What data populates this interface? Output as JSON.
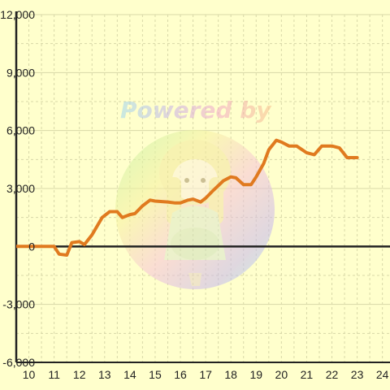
{
  "colors": {
    "background": "#ffffcc",
    "grid": "#d8d8a8",
    "axis": "#222222",
    "series": "#e07a1f"
  },
  "watermark": {
    "text": "Powered by",
    "description_icon": "anime-mascot-logo-icon"
  },
  "chart_data": {
    "type": "line",
    "title": "",
    "xlabel": "",
    "ylabel": "",
    "xlim": [
      9.5,
      24.3
    ],
    "ylim": [
      -6000,
      12000
    ],
    "x_ticks": [
      10,
      11,
      12,
      13,
      14,
      15,
      16,
      17,
      18,
      19,
      20,
      21,
      22,
      23,
      24
    ],
    "y_ticks": [
      -6000,
      -3000,
      0,
      3000,
      6000,
      9000,
      12000
    ],
    "x_tick_labels": [
      "10",
      "11",
      "12",
      "13",
      "14",
      "15",
      "16",
      "17",
      "18",
      "19",
      "20",
      "21",
      "22",
      "23",
      "24"
    ],
    "y_tick_labels": [
      "-6,000",
      "-3,000",
      "0",
      "3,000",
      "6,000",
      "9,000",
      "12,000"
    ],
    "grid": true,
    "series": [
      {
        "x": [
          9.5,
          11.0,
          11.2,
          11.5,
          11.7,
          12.0,
          12.2,
          12.5,
          12.9,
          13.2,
          13.5,
          13.7,
          14.0,
          14.2,
          14.5,
          14.8,
          15.0,
          15.5,
          15.8,
          16.0,
          16.3,
          16.5,
          16.8,
          17.0,
          17.3,
          17.7,
          18.0,
          18.2,
          18.5,
          18.8,
          19.0,
          19.3,
          19.5,
          19.8,
          20.0,
          20.3,
          20.6,
          21.0,
          21.3,
          21.6,
          22.0,
          22.3,
          22.6,
          23.0
        ],
        "y": [
          0,
          0,
          -400,
          -450,
          200,
          250,
          100,
          600,
          1500,
          1800,
          1800,
          1500,
          1650,
          1700,
          2100,
          2400,
          2350,
          2300,
          2250,
          2250,
          2400,
          2450,
          2300,
          2500,
          2900,
          3400,
          3600,
          3550,
          3200,
          3200,
          3600,
          4300,
          5000,
          5500,
          5400,
          5200,
          5200,
          4850,
          4750,
          5200,
          5200,
          5100,
          4600,
          4600
        ]
      }
    ]
  }
}
